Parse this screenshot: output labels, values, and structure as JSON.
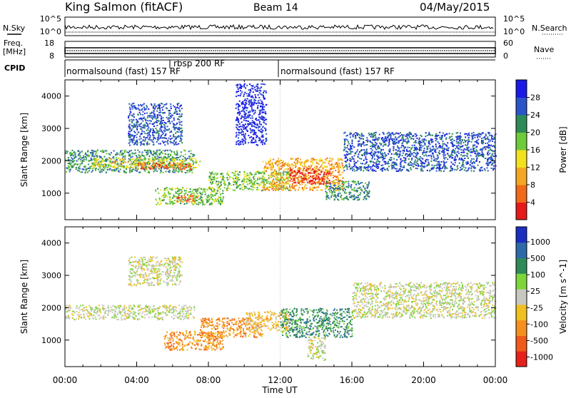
{
  "header": {
    "station": "King Salmon (fitACF)",
    "beam": "Beam 14",
    "date": "04/May/2015"
  },
  "top_panels": {
    "nsky_label": "N.Sky",
    "nsky_ticks": [
      "10^5",
      "10^0"
    ],
    "nsearch_label": "N.Search",
    "nsearch_ticks": [
      "10^5",
      "10^0"
    ],
    "freq_label_1": "Freq.",
    "freq_label_2": "[MHz]",
    "freq_ticks": [
      "18",
      "8"
    ],
    "nave_label": "Nave",
    "nave_ticks": [
      "60",
      "0"
    ],
    "cpid_label": "CPID",
    "cpid_segments": [
      {
        "label": "normalsound (fast) 157 RF",
        "start_hour": 0
      },
      {
        "label": "rbsp 200 RF",
        "start_hour": 7.33
      },
      {
        "label": "normalsound (fast) 157 RF",
        "start_hour": 12
      }
    ]
  },
  "chart_data": [
    {
      "type": "heatmap",
      "panel": "power",
      "ylabel": "Slant Range [km]",
      "xlabel": "",
      "yticks": [
        "1000",
        "2000",
        "3000",
        "4000"
      ],
      "ylim": [
        180,
        4500
      ],
      "xlim_hours": [
        0,
        24
      ],
      "colorbar_label": "Power [dB]",
      "colorbar_ticks": [
        "4",
        "8",
        "12",
        "16",
        "20",
        "24",
        "28"
      ],
      "colorbar_colors": [
        "#1a1ae6",
        "#2a55c8",
        "#2e8b57",
        "#6ecb3a",
        "#f2e11e",
        "#f5a623",
        "#f06a1a",
        "#e61a1a"
      ],
      "regions": [
        {
          "t0": 0.0,
          "t1": 7.2,
          "r0": 1650,
          "r1": 2350,
          "level": 2
        },
        {
          "t0": 1.5,
          "t1": 7.5,
          "r0": 1800,
          "r1": 2100,
          "level": 4
        },
        {
          "t0": 4.0,
          "t1": 7.0,
          "r0": 1750,
          "r1": 1950,
          "level": 6
        },
        {
          "t0": 3.5,
          "t1": 6.5,
          "r0": 2500,
          "r1": 3800,
          "level": 1
        },
        {
          "t0": 5.0,
          "t1": 8.8,
          "r0": 650,
          "r1": 1200,
          "level": 3
        },
        {
          "t0": 6.2,
          "t1": 7.4,
          "r0": 750,
          "r1": 950,
          "level": 6
        },
        {
          "t0": 8.0,
          "t1": 12.5,
          "r0": 1100,
          "r1": 1700,
          "level": 3
        },
        {
          "t0": 11.0,
          "t1": 15.5,
          "r0": 1100,
          "r1": 2100,
          "level": 5
        },
        {
          "t0": 12.5,
          "t1": 14.8,
          "r0": 1300,
          "r1": 1800,
          "level": 7
        },
        {
          "t0": 14.5,
          "t1": 17.0,
          "r0": 800,
          "r1": 1400,
          "level": 2
        },
        {
          "t0": 15.5,
          "t1": 24.0,
          "r0": 1700,
          "r1": 2900,
          "level": 1
        },
        {
          "t0": 9.5,
          "t1": 11.2,
          "r0": 2500,
          "r1": 4400,
          "level": 0
        }
      ]
    },
    {
      "type": "heatmap",
      "panel": "velocity",
      "ylabel": "Slant Range [km]",
      "xlabel": "Time UT",
      "yticks": [
        "1000",
        "2000",
        "3000",
        "4000"
      ],
      "ylim": [
        180,
        4500
      ],
      "xlim_hours": [
        0,
        24
      ],
      "xticks": [
        "00:00",
        "04:00",
        "08:00",
        "12:00",
        "16:00",
        "20:00",
        "00:00"
      ],
      "colorbar_label": "Velocity [m s^-1]",
      "colorbar_ticks": [
        "1000",
        "500",
        "100",
        "25",
        "-25",
        "-100",
        "-500",
        "-1000"
      ],
      "colorbar_colors": [
        "#1a2fbf",
        "#2e6aa8",
        "#2e8b57",
        "#7ed63a",
        "#c8c8c0",
        "#f0c020",
        "#f5901e",
        "#f05a1a",
        "#e6201a"
      ],
      "regions": [
        {
          "t0": 0.0,
          "t1": 7.2,
          "r0": 1650,
          "r1": 2100,
          "level": 4
        },
        {
          "t0": 3.5,
          "t1": 6.5,
          "r0": 2700,
          "r1": 3600,
          "level": 4
        },
        {
          "t0": 5.5,
          "t1": 8.8,
          "r0": 700,
          "r1": 1300,
          "level": 6
        },
        {
          "t0": 7.5,
          "t1": 11.0,
          "r0": 1100,
          "r1": 1700,
          "level": 6
        },
        {
          "t0": 10.0,
          "t1": 12.5,
          "r0": 1300,
          "r1": 1900,
          "level": 5
        },
        {
          "t0": 12.0,
          "t1": 16.0,
          "r0": 1100,
          "r1": 2000,
          "level": 2
        },
        {
          "t0": 13.5,
          "t1": 14.5,
          "r0": 400,
          "r1": 1100,
          "level": 4
        },
        {
          "t0": 16.0,
          "t1": 24.0,
          "r0": 1700,
          "r1": 2800,
          "level": 4
        }
      ]
    }
  ]
}
